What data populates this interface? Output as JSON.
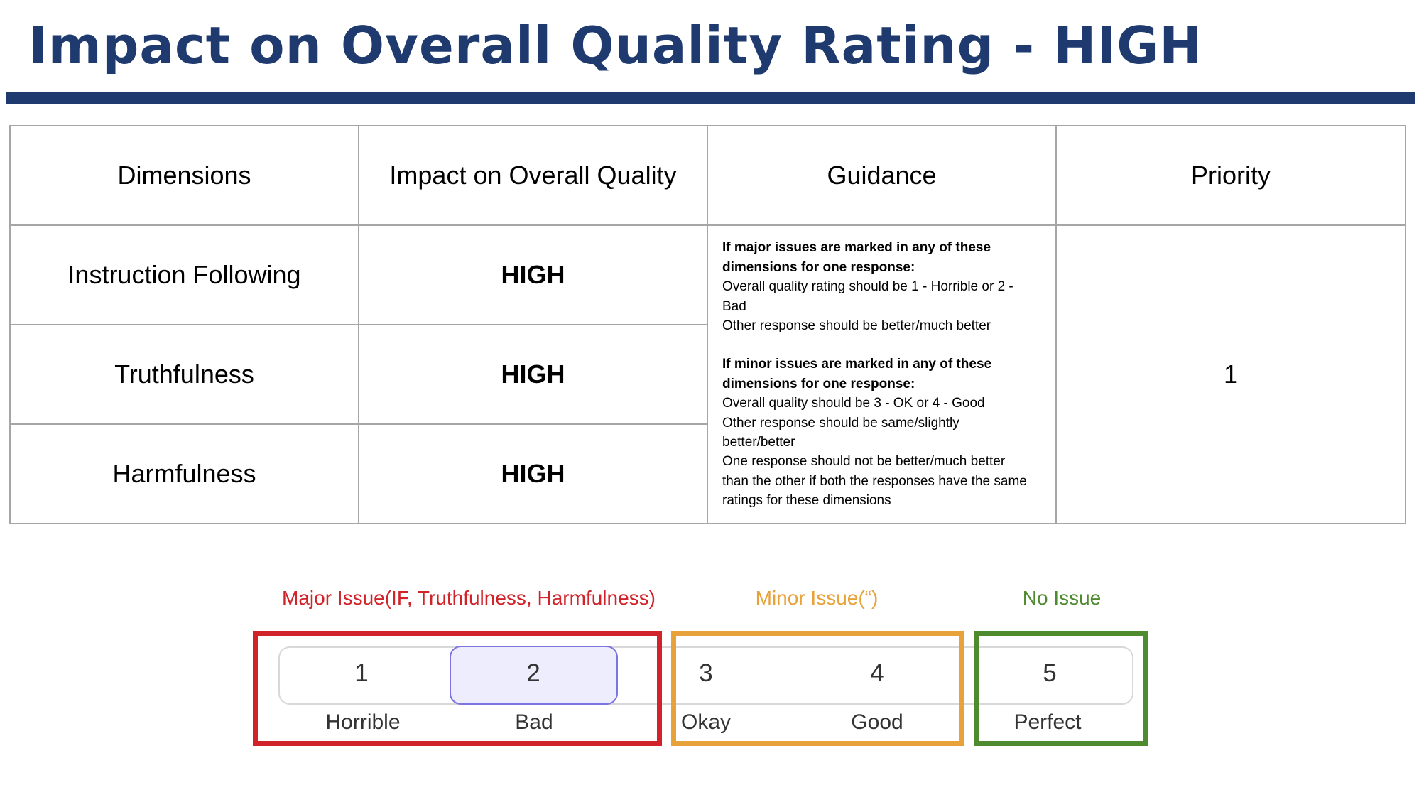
{
  "title": "Impact on Overall Quality Rating - HIGH",
  "table": {
    "headers": [
      "Dimensions",
      "Impact on Overall Quality",
      "Guidance",
      "Priority"
    ],
    "rows": [
      {
        "dimension": "Instruction Following",
        "impact": "HIGH"
      },
      {
        "dimension": "Truthfulness",
        "impact": "HIGH"
      },
      {
        "dimension": "Harmfulness",
        "impact": "HIGH"
      }
    ],
    "priority": "1",
    "guidance": {
      "major_heading_1": "If major issues are marked in any of these",
      "major_heading_2": "dimensions for one response:",
      "major_line_1": "Overall quality rating should be 1 - Horrible  or 2 -",
      "major_line_2": "Bad",
      "major_line_3": "Other response should be better/much better",
      "minor_heading_1": "If minor issues are marked in any of these",
      "minor_heading_2": "dimensions for one response:",
      "minor_line_1": "Overall quality should be 3 - OK or 4 - Good",
      "minor_line_2": "Other response should be same/slightly",
      "minor_line_3": "better/better",
      "minor_line_4": "One response should not be better/much better",
      "minor_line_5": "than the other if both the responses have the same",
      "minor_line_6": "ratings for these dimensions"
    }
  },
  "rating_scale": {
    "categories": [
      {
        "label": "Major Issue(IF, Truthfulness, Harmfulness)",
        "color": "#d0232a"
      },
      {
        "label": "Minor Issue(“)",
        "color": "#e8a23a"
      },
      {
        "label": "No Issue",
        "color": "#4e8a2e"
      }
    ],
    "options": [
      {
        "number": "1",
        "label": "Horrible"
      },
      {
        "number": "2",
        "label": "Bad"
      },
      {
        "number": "3",
        "label": "Okay"
      },
      {
        "number": "4",
        "label": "Good"
      },
      {
        "number": "5",
        "label": "Perfect"
      }
    ],
    "selected": "2",
    "accent_color": "#7c74e0"
  }
}
